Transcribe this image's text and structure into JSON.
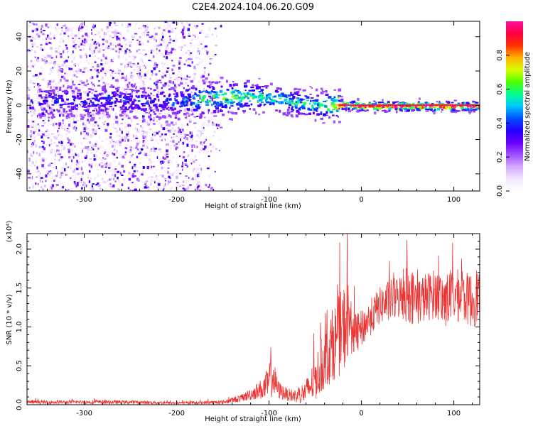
{
  "title": "C2E4.2024.104.06.20.G09",
  "chart_data": [
    {
      "type": "heatmap",
      "xlabel": "Height of straight line (km)",
      "ylabel": "Frequency (Hz)",
      "xlim": [
        -362,
        128
      ],
      "ylim": [
        -50,
        49
      ],
      "xticks": [
        -300,
        -200,
        -100,
        0,
        100
      ],
      "yticks": [
        -40,
        -20,
        0,
        20,
        40
      ],
      "colorbar": {
        "label": "Normalized spectral amplitude",
        "range": [
          0,
          1
        ],
        "ticks": [
          "0.0",
          "0.2",
          "0.4",
          "0.6",
          "0.8"
        ],
        "colors": [
          "#ffffff",
          "#f3e6ff",
          "#d4a8ff",
          "#a050ff",
          "#6a00ff",
          "#2200ff",
          "#0050ff",
          "#00c8ff",
          "#00ff90",
          "#50ff00",
          "#d8ff00",
          "#ffb000",
          "#ff3000",
          "#ff0040",
          "#ff10a0"
        ]
      },
      "ridge": {
        "x": [
          -350,
          -300,
          -250,
          -200,
          -175,
          -150,
          -125,
          -100,
          -80,
          -60,
          -45,
          -35,
          -25,
          0,
          50,
          100,
          128
        ],
        "y": [
          3,
          3,
          3,
          3,
          4,
          5,
          6,
          5,
          3,
          1,
          0,
          1,
          1,
          0,
          0,
          0,
          0
        ],
        "strength": [
          0.25,
          0.28,
          0.26,
          0.32,
          0.5,
          0.5,
          0.5,
          0.45,
          0.42,
          0.45,
          0.45,
          0.6,
          0.9,
          0.95,
          0.95,
          0.95,
          0.95
        ]
      },
      "noise_region_x": [
        -362,
        -180
      ],
      "noise_tail_x": [
        -180,
        -150
      ]
    },
    {
      "type": "line",
      "xlabel": "Height of straight line (km)",
      "ylabel": "SNR (10 * v/v)",
      "yscale_label": "(x10⁴)",
      "xlim": [
        -362,
        128
      ],
      "ylim": [
        0,
        2.2
      ],
      "xticks": [
        -300,
        -200,
        -100,
        0,
        100
      ],
      "yticks": [
        "0.0",
        "0.5",
        "1.0",
        "1.5",
        "2.0"
      ],
      "ytick_values": [
        0,
        0.5,
        1.0,
        1.5,
        2.0
      ],
      "color": "#ee3333",
      "series": [
        {
          "x": [
            -362,
            -300,
            -250,
            -200,
            -150,
            -130,
            -115,
            -105,
            -100,
            -97,
            -95,
            -90,
            -80,
            -70,
            -60,
            -50,
            -40,
            -30,
            -20,
            -15,
            -12,
            -8,
            0,
            10,
            20,
            30,
            40,
            50,
            60,
            70,
            80,
            90,
            100,
            110,
            120,
            128
          ],
          "y": [
            0.03,
            0.03,
            0.03,
            0.02,
            0.03,
            0.08,
            0.15,
            0.2,
            0.25,
            0.45,
            0.3,
            0.18,
            0.12,
            0.1,
            0.15,
            0.3,
            0.55,
            0.75,
            0.9,
            1.05,
            1.0,
            0.85,
            0.95,
            1.1,
            1.25,
            1.3,
            1.35,
            1.4,
            1.3,
            1.35,
            1.4,
            1.3,
            1.38,
            1.35,
            1.3,
            1.4
          ],
          "spread": [
            0.03,
            0.03,
            0.03,
            0.02,
            0.03,
            0.06,
            0.12,
            0.2,
            0.3,
            0.5,
            0.3,
            0.15,
            0.1,
            0.12,
            0.2,
            0.35,
            0.5,
            0.6,
            0.7,
            0.7,
            0.45,
            0.35,
            0.3,
            0.3,
            0.3,
            0.35,
            0.35,
            0.5,
            0.4,
            0.4,
            0.4,
            0.45,
            0.45,
            0.4,
            0.45,
            0.5
          ]
        }
      ]
    }
  ]
}
